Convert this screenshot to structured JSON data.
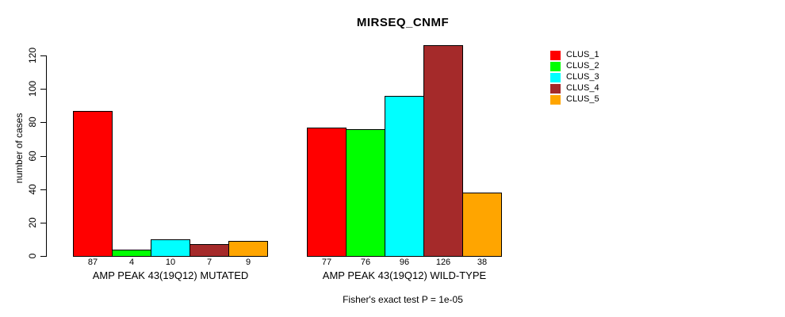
{
  "title": "MIRSEQ_CNMF",
  "footer": "Fisher's exact test P = 1e-05",
  "legend": {
    "entries": [
      {
        "label": "CLUS_1",
        "color": "#FF0000"
      },
      {
        "label": "CLUS_2",
        "color": "#00FF00"
      },
      {
        "label": "CLUS_3",
        "color": "#00FFFF"
      },
      {
        "label": "CLUS_4",
        "color": "#A52A2A"
      },
      {
        "label": "CLUS_5",
        "color": "#FFA500"
      }
    ]
  },
  "chart_data": {
    "type": "bar",
    "title": "MIRSEQ_CNMF",
    "xlabel": "",
    "ylabel": "number of cases",
    "ylim": [
      0,
      126
    ],
    "yticks": [
      0,
      20,
      40,
      60,
      80,
      100,
      120
    ],
    "grid": false,
    "legend_position": "right",
    "series_names": [
      "CLUS_1",
      "CLUS_2",
      "CLUS_3",
      "CLUS_4",
      "CLUS_5"
    ],
    "series_colors": [
      "#FF0000",
      "#00FF00",
      "#00FFFF",
      "#A52A2A",
      "#FFA500"
    ],
    "groups": [
      {
        "label": "AMP PEAK 43(19Q12) MUTATED",
        "values": [
          87,
          4,
          10,
          7,
          9
        ],
        "value_labels": [
          "87",
          "4",
          "10",
          "7",
          "9"
        ]
      },
      {
        "label": "AMP PEAK 43(19Q12) WILD-TYPE",
        "values": [
          77,
          76,
          96,
          126,
          38
        ],
        "value_labels": [
          "77",
          "76",
          "96",
          "126",
          "38"
        ]
      }
    ],
    "annotation": "Fisher's exact test P = 1e-05"
  }
}
